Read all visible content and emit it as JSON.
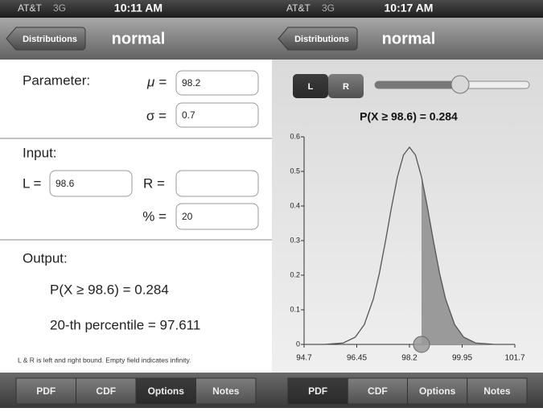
{
  "screens": [
    {
      "status": {
        "carrier": "AT&T",
        "network": "3G",
        "time": "10:11 AM"
      },
      "nav": {
        "back": "Distributions",
        "title": "normal"
      },
      "parameter": {
        "label": "Parameter:",
        "mu_label": "μ =",
        "mu": "98.2",
        "sigma_label": "σ =",
        "sigma": "0.7"
      },
      "input": {
        "label": "Input:",
        "l_label": "L =",
        "l": "98.6",
        "r_label": "R =",
        "r": "",
        "pct_label": "% =",
        "pct": "20"
      },
      "output": {
        "label": "Output:",
        "prob": "P(X ≥ 98.6) = 0.284",
        "percentile": "20-th percentile = 97.611",
        "note": "L & R is left and right bound. Empty field indicates infinity."
      },
      "tabs": [
        "PDF",
        "CDF",
        "Options",
        "Notes"
      ],
      "selected_tab": 2
    },
    {
      "status": {
        "carrier": "AT&T",
        "network": "3G",
        "time": "10:17 AM"
      },
      "nav": {
        "back": "Distributions",
        "title": "normal"
      },
      "segments": [
        "L",
        "R"
      ],
      "tabs": [
        "PDF",
        "CDF",
        "Options",
        "Notes"
      ],
      "selected_tab": 0
    }
  ],
  "chart_data": {
    "type": "area",
    "title": "P(X ≥ 98.6) = 0.284",
    "x": [
      94.7,
      95.4,
      96.0,
      96.4,
      96.7,
      97.0,
      97.2,
      97.4,
      97.6,
      97.8,
      98.0,
      98.2,
      98.4,
      98.6,
      98.8,
      99.0,
      99.2,
      99.4,
      99.7,
      100.0,
      100.4,
      101.0,
      101.7
    ],
    "values": [
      0,
      0.0002,
      0.0041,
      0.0209,
      0.0574,
      0.1311,
      0.2054,
      0.2966,
      0.3947,
      0.484,
      0.5471,
      0.5699,
      0.5471,
      0.484,
      0.3947,
      0.2966,
      0.2054,
      0.1311,
      0.0574,
      0.0209,
      0.0041,
      0.0002,
      0
    ],
    "shade_from": 98.6,
    "color": "#555555",
    "shade_color": "#9a9a9a",
    "xlim": [
      94.7,
      101.7
    ],
    "xticks": [
      94.7,
      96.45,
      98.2,
      99.95,
      101.7
    ],
    "ylim": [
      0,
      0.6
    ],
    "yticks": [
      0,
      0.1,
      0.2,
      0.3,
      0.4,
      0.5,
      0.6
    ]
  }
}
